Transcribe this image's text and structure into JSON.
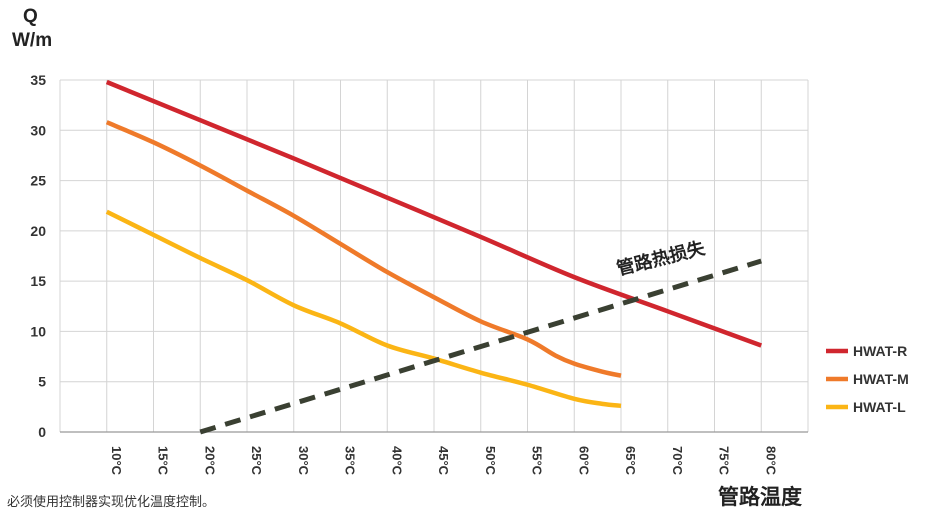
{
  "chart_data": {
    "type": "line",
    "ylabel_symbol": "Q",
    "ylabel_unit": "W/m",
    "xlabel": "管路温度",
    "ylim": [
      0,
      35
    ],
    "yticks": [
      0,
      5,
      10,
      15,
      20,
      25,
      30,
      35
    ],
    "categories": [
      "10°C",
      "15°C",
      "20°C",
      "25°C",
      "30°C",
      "35°C",
      "40°C",
      "45°C",
      "50°C",
      "55°C",
      "60°C",
      "65°C",
      "70°C",
      "75°C",
      "80°C"
    ],
    "x": [
      10,
      15,
      20,
      25,
      30,
      35,
      40,
      45,
      50,
      55,
      60,
      65,
      70,
      75,
      80
    ],
    "grid": true,
    "legend_position": "right",
    "series": [
      {
        "name": "HWAT-R",
        "color": "#d0262e",
        "style": "solid",
        "x": [
          10,
          20,
          30,
          40,
          50,
          60,
          70,
          80
        ],
        "values": [
          34.8,
          31.0,
          27.2,
          23.3,
          19.4,
          15.4,
          12.0,
          8.6
        ]
      },
      {
        "name": "HWAT-M",
        "color": "#ef7a2a",
        "style": "solid",
        "x": [
          10,
          15,
          20,
          25,
          30,
          35,
          40,
          45,
          50,
          55,
          58,
          60,
          63,
          65
        ],
        "values": [
          30.8,
          28.8,
          26.5,
          24.0,
          21.5,
          18.7,
          15.9,
          13.4,
          11.0,
          9.2,
          7.6,
          6.8,
          6.0,
          5.6
        ]
      },
      {
        "name": "HWAT-L",
        "color": "#fbb515",
        "style": "solid",
        "x": [
          10,
          15,
          20,
          25,
          30,
          35,
          40,
          45,
          50,
          55,
          60,
          63,
          65
        ],
        "values": [
          21.9,
          19.6,
          17.3,
          15.1,
          12.6,
          10.8,
          8.6,
          7.3,
          5.9,
          4.7,
          3.3,
          2.8,
          2.6
        ]
      },
      {
        "name": "",
        "color": "#3a4032",
        "style": "dashed",
        "x": [
          20,
          80
        ],
        "values": [
          0,
          17.0
        ]
      }
    ],
    "annotation": "管路热损失"
  },
  "footnote": "必须使用控制器实现优化温度控制。"
}
